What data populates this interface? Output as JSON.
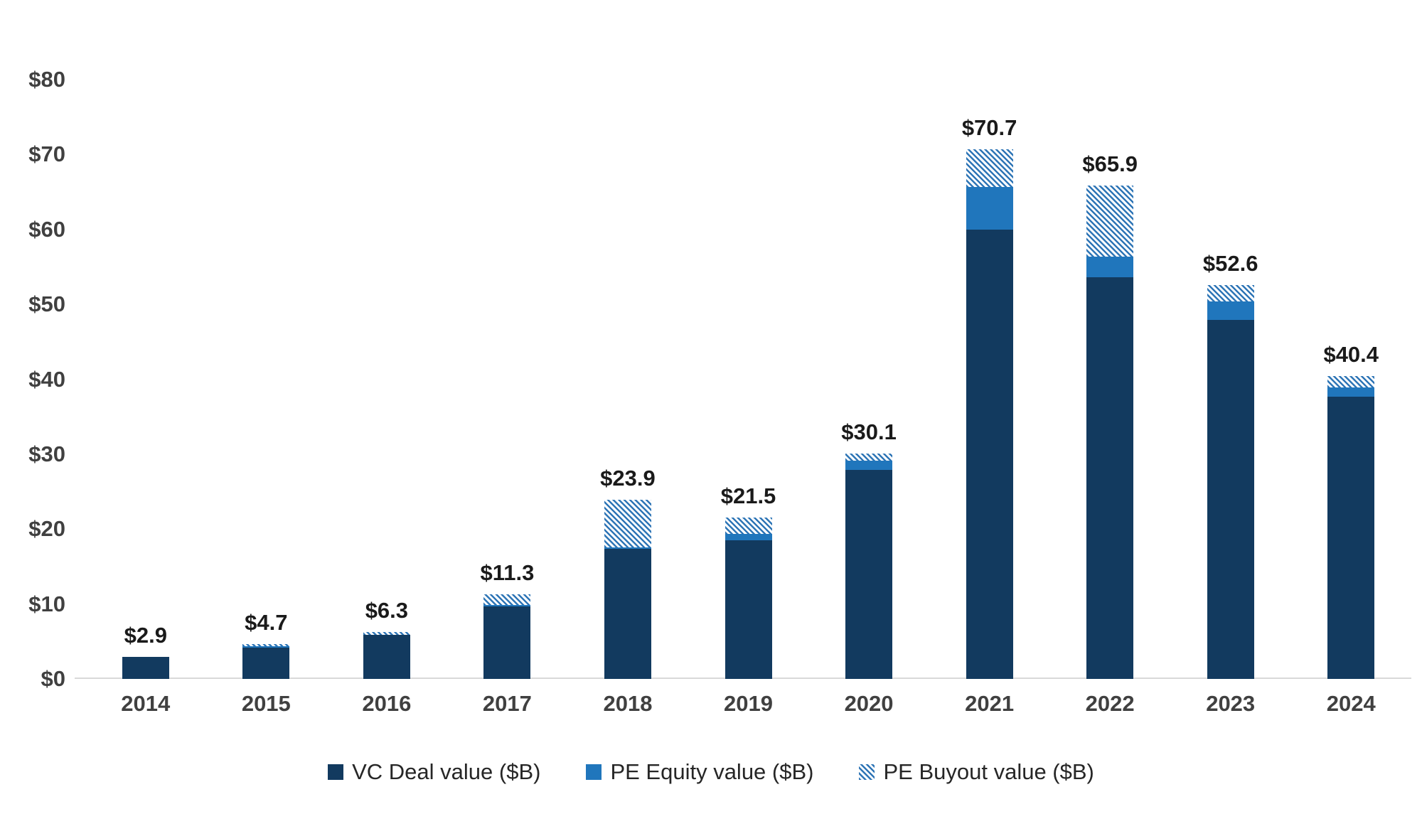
{
  "chart_data": {
    "type": "bar",
    "stacked": true,
    "title": "",
    "xlabel": "",
    "ylabel": "",
    "ylim": [
      0,
      80
    ],
    "grid": false,
    "legend_position": "bottom",
    "categories": [
      "2014",
      "2015",
      "2016",
      "2017",
      "2018",
      "2019",
      "2020",
      "2021",
      "2022",
      "2023",
      "2024"
    ],
    "y_ticks": [
      "$0",
      "$10",
      "$20",
      "$30",
      "$40",
      "$50",
      "$60",
      "$70",
      "$80"
    ],
    "series": [
      {
        "name": "VC Deal value ($B)",
        "color": "#123A5F",
        "pattern": "solid",
        "values": [
          2.9,
          4.2,
          5.9,
          9.7,
          17.4,
          18.5,
          27.9,
          60.0,
          53.6,
          47.9,
          37.7
        ]
      },
      {
        "name": "PE Equity value ($B)",
        "color": "#2076BC",
        "pattern": "solid",
        "values": [
          0,
          0.2,
          0,
          0.2,
          0.2,
          0.9,
          1.2,
          5.7,
          2.8,
          2.5,
          1.2
        ]
      },
      {
        "name": "PE Buyout value ($B)",
        "color": "#2E75B6",
        "pattern": "diagonal-stripes",
        "values": [
          0,
          0.3,
          0.4,
          1.4,
          6.3,
          2.1,
          1.0,
          5.0,
          9.5,
          2.2,
          1.5
        ]
      }
    ],
    "totals": [
      "$2.9",
      "$4.7",
      "$6.3",
      "$11.3",
      "$23.9",
      "$21.5",
      "$30.1",
      "$70.7",
      "$65.9",
      "$52.6",
      "$40.4"
    ]
  },
  "axis": {
    "baseline_color": "#d9d9d9"
  }
}
